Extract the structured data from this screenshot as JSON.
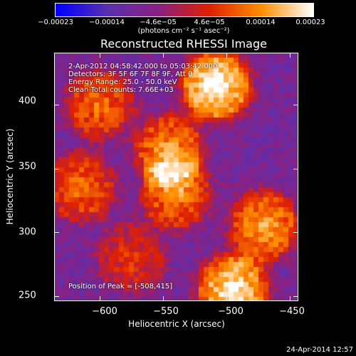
{
  "chart_data": {
    "type": "heatmap",
    "title": "Reconstructed RHESSI Image",
    "xlabel": "Heliocentric X (arcsec)",
    "ylabel": "Heliocentric Y (arcsec)",
    "xlim": [
      -636,
      -443
    ],
    "ylim": [
      246,
      441
    ],
    "x_ticks": [
      "−600",
      "−550",
      "−500",
      "−450"
    ],
    "y_ticks": [
      "250",
      "300",
      "350",
      "400"
    ],
    "colorbar": {
      "range": [
        -0.00023,
        0.00023
      ],
      "tick_labels": [
        "−0.00023",
        "−0.00014",
        "−4.6e−05",
        "4.6e−05",
        "0.00014",
        "0.00023"
      ],
      "unit_label": "(photons cm⁻² s⁻¹ asec⁻²)",
      "colors": [
        "#0000ff",
        "#5a2fb0",
        "#8a2080",
        "#e02000",
        "#ff9000",
        "#ffffff"
      ]
    },
    "annotations": [
      "2-Apr-2012 04:58:42.000 to 05:03:42.000",
      "Detectors: 3F 5F 6F 7F 8F 9F, Att 0",
      "Energy Range: 25.0 - 50.0 keV",
      "Clean     Total counts: 7.66E+03"
    ],
    "peak_label": "Position of Peak = [-508,415]",
    "bright_regions": [
      {
        "x": -508,
        "y": 415,
        "level": 1.0
      },
      {
        "x": -495,
        "y": 255,
        "level": 0.95
      },
      {
        "x": -470,
        "y": 305,
        "level": 0.75
      },
      {
        "x": -545,
        "y": 365,
        "level": 0.7
      },
      {
        "x": -600,
        "y": 400,
        "level": 0.6
      },
      {
        "x": -615,
        "y": 335,
        "level": 0.6
      },
      {
        "x": -540,
        "y": 330,
        "level": 0.65
      },
      {
        "x": -575,
        "y": 280,
        "level": 0.45
      }
    ]
  },
  "timestamp": "24-Apr-2014 12:57"
}
